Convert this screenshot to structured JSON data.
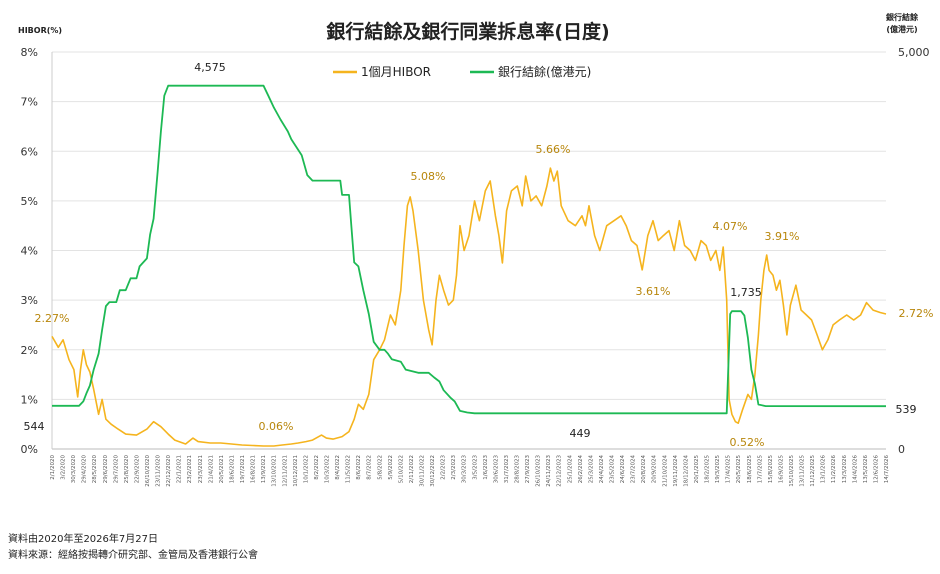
{
  "chart_data": {
    "type": "line",
    "title": "銀行結餘及銀行同業拆息率(日度)",
    "y_left_label": "HIBOR(%)",
    "y_right_label_line1": "銀行結餘",
    "y_right_label_line2": "(億港元)",
    "y_left_ticks": [
      "0%",
      "1%",
      "2%",
      "3%",
      "4%",
      "5%",
      "6%",
      "7%",
      "8%"
    ],
    "y_left_range": [
      0,
      8
    ],
    "y_right_ticks": [
      "0",
      "5,000"
    ],
    "y_right_range": [
      0,
      5000
    ],
    "x_range": [
      "2020-01-02",
      "2026-07-27"
    ],
    "x_tick_labels": [
      "2/1/2020",
      "3/2/2020",
      "30/3/2020",
      "29/4/2020",
      "28/5/2020",
      "29/6/2020",
      "29/7/2020",
      "25/8/2020",
      "22/9/2020",
      "26/10/2020",
      "23/11/2020",
      "22/12/2020",
      "22/1/2021",
      "23/2/2021",
      "23/3/2021",
      "21/4/2021",
      "20/5/2021",
      "18/6/2021",
      "19/7/2021",
      "16/8/2021",
      "13/9/2021",
      "13/10/2021",
      "12/11/2021",
      "10/12/2021",
      "10/1/2022",
      "8/2/2022",
      "10/3/2022",
      "8/4/2022",
      "11/5/2022",
      "8/6/2022",
      "8/7/2022",
      "5/8/2022",
      "5/9/2022",
      "5/10/2022",
      "2/11/2022",
      "30/11/2022",
      "30/12/2022",
      "2/2/2023",
      "2/3/2023",
      "30/3/2023",
      "3/5/2023",
      "1/6/2023",
      "30/6/2023",
      "31/7/2023",
      "28/8/2023",
      "27/9/2023",
      "26/10/2023",
      "24/11/2023",
      "22/12/2023",
      "25/1/2024",
      "26/2/2024",
      "25/3/2024",
      "24/4/2024",
      "23/5/2024",
      "24/6/2024",
      "23/7/2024",
      "20/8/2024",
      "20/9/2024",
      "21/10/2024",
      "19/11/2024",
      "18/12/2024",
      "20/1/2025",
      "18/2/2025",
      "19/3/2025",
      "17/4/2025",
      "20/5/2025",
      "18/6/2025",
      "17/7/2025",
      "15/8/2025",
      "16/9/2025",
      "15/10/2025",
      "13/11/2025",
      "11/12/2025",
      "13/1/2026",
      "11/2/2026",
      "13/3/2026",
      "14/4/2026",
      "13/5/2026",
      "12/6/2026",
      "14/7/2026"
    ],
    "series": [
      {
        "name": "1個月HIBOR",
        "axis": "left",
        "color": "#F5B41E",
        "points": [
          [
            "2020-01-02",
            2.27
          ],
          [
            "2020-01-20",
            2.05
          ],
          [
            "2020-02-03",
            2.2
          ],
          [
            "2020-02-20",
            1.8
          ],
          [
            "2020-03-05",
            1.6
          ],
          [
            "2020-03-16",
            1.05
          ],
          [
            "2020-03-24",
            1.6
          ],
          [
            "2020-04-01",
            2.0
          ],
          [
            "2020-04-10",
            1.7
          ],
          [
            "2020-04-20",
            1.55
          ],
          [
            "2020-05-01",
            1.2
          ],
          [
            "2020-05-15",
            0.7
          ],
          [
            "2020-05-25",
            1.0
          ],
          [
            "2020-06-05",
            0.6
          ],
          [
            "2020-06-20",
            0.5
          ],
          [
            "2020-07-10",
            0.4
          ],
          [
            "2020-08-01",
            0.3
          ],
          [
            "2020-09-01",
            0.28
          ],
          [
            "2020-10-01",
            0.4
          ],
          [
            "2020-10-20",
            0.55
          ],
          [
            "2020-11-10",
            0.45
          ],
          [
            "2020-12-01",
            0.3
          ],
          [
            "2020-12-20",
            0.18
          ],
          [
            "2021-01-20",
            0.1
          ],
          [
            "2021-02-10",
            0.22
          ],
          [
            "2021-02-25",
            0.15
          ],
          [
            "2021-04-01",
            0.12
          ],
          [
            "2021-05-01",
            0.12
          ],
          [
            "2021-06-01",
            0.1
          ],
          [
            "2021-07-01",
            0.08
          ],
          [
            "2021-08-01",
            0.07
          ],
          [
            "2021-09-01",
            0.06
          ],
          [
            "2021-10-01",
            0.06
          ],
          [
            "2021-10-25",
            0.08
          ],
          [
            "2021-11-20",
            0.1
          ],
          [
            "2021-12-10",
            0.12
          ],
          [
            "2022-01-01",
            0.15
          ],
          [
            "2022-01-20",
            0.18
          ],
          [
            "2022-02-15",
            0.28
          ],
          [
            "2022-03-01",
            0.22
          ],
          [
            "2022-03-20",
            0.2
          ],
          [
            "2022-04-15",
            0.25
          ],
          [
            "2022-05-05",
            0.35
          ],
          [
            "2022-05-20",
            0.6
          ],
          [
            "2022-06-01",
            0.9
          ],
          [
            "2022-06-15",
            0.8
          ],
          [
            "2022-07-01",
            1.1
          ],
          [
            "2022-07-15",
            1.8
          ],
          [
            "2022-08-01",
            2.0
          ],
          [
            "2022-08-15",
            2.2
          ],
          [
            "2022-09-01",
            2.7
          ],
          [
            "2022-09-15",
            2.5
          ],
          [
            "2022-10-01",
            3.2
          ],
          [
            "2022-10-10",
            4.1
          ],
          [
            "2022-10-20",
            4.9
          ],
          [
            "2022-10-28",
            5.08
          ],
          [
            "2022-11-05",
            4.8
          ],
          [
            "2022-11-20",
            4.0
          ],
          [
            "2022-12-05",
            3.0
          ],
          [
            "2022-12-20",
            2.4
          ],
          [
            "2022-12-30",
            2.1
          ],
          [
            "2023-01-10",
            3.0
          ],
          [
            "2023-01-20",
            3.5
          ],
          [
            "2023-02-01",
            3.2
          ],
          [
            "2023-02-15",
            2.9
          ],
          [
            "2023-03-01",
            3.0
          ],
          [
            "2023-03-10",
            3.5
          ],
          [
            "2023-03-20",
            4.5
          ],
          [
            "2023-04-01",
            4.0
          ],
          [
            "2023-04-15",
            4.3
          ],
          [
            "2023-05-01",
            5.0
          ],
          [
            "2023-05-15",
            4.6
          ],
          [
            "2023-06-01",
            5.2
          ],
          [
            "2023-06-15",
            5.4
          ],
          [
            "2023-06-30",
            4.7
          ],
          [
            "2023-07-10",
            4.3
          ],
          [
            "2023-07-20",
            3.75
          ],
          [
            "2023-08-01",
            4.8
          ],
          [
            "2023-08-15",
            5.2
          ],
          [
            "2023-09-01",
            5.3
          ],
          [
            "2023-09-15",
            4.9
          ],
          [
            "2023-09-25",
            5.5
          ],
          [
            "2023-10-10",
            5.0
          ],
          [
            "2023-10-25",
            5.1
          ],
          [
            "2023-11-10",
            4.9
          ],
          [
            "2023-11-25",
            5.3
          ],
          [
            "2023-12-05",
            5.66
          ],
          [
            "2023-12-15",
            5.4
          ],
          [
            "2023-12-25",
            5.6
          ],
          [
            "2024-01-05",
            4.9
          ],
          [
            "2024-01-25",
            4.6
          ],
          [
            "2024-02-15",
            4.5
          ],
          [
            "2024-03-05",
            4.7
          ],
          [
            "2024-03-15",
            4.5
          ],
          [
            "2024-03-25",
            4.9
          ],
          [
            "2024-04-10",
            4.3
          ],
          [
            "2024-04-25",
            4.0
          ],
          [
            "2024-05-15",
            4.5
          ],
          [
            "2024-06-05",
            4.6
          ],
          [
            "2024-06-25",
            4.7
          ],
          [
            "2024-07-10",
            4.5
          ],
          [
            "2024-07-25",
            4.2
          ],
          [
            "2024-08-10",
            4.1
          ],
          [
            "2024-08-25",
            3.61
          ],
          [
            "2024-09-10",
            4.3
          ],
          [
            "2024-09-25",
            4.6
          ],
          [
            "2024-10-10",
            4.2
          ],
          [
            "2024-10-25",
            4.3
          ],
          [
            "2024-11-10",
            4.4
          ],
          [
            "2024-11-25",
            4.0
          ],
          [
            "2024-12-10",
            4.6
          ],
          [
            "2024-12-25",
            4.1
          ],
          [
            "2025-01-10",
            4.0
          ],
          [
            "2025-01-25",
            3.8
          ],
          [
            "2025-02-10",
            4.2
          ],
          [
            "2025-02-25",
            4.1
          ],
          [
            "2025-03-10",
            3.8
          ],
          [
            "2025-03-25",
            4.0
          ],
          [
            "2025-04-05",
            3.6
          ],
          [
            "2025-04-15",
            4.07
          ],
          [
            "2025-04-25",
            3.0
          ],
          [
            "2025-05-02",
            1.0
          ],
          [
            "2025-05-10",
            0.7
          ],
          [
            "2025-05-20",
            0.55
          ],
          [
            "2025-05-28",
            0.52
          ],
          [
            "2025-06-10",
            0.8
          ],
          [
            "2025-06-25",
            1.1
          ],
          [
            "2025-07-05",
            1.0
          ],
          [
            "2025-07-15",
            1.5
          ],
          [
            "2025-07-25",
            2.3
          ],
          [
            "2025-08-01",
            3.0
          ],
          [
            "2025-08-10",
            3.6
          ],
          [
            "2025-08-18",
            3.91
          ],
          [
            "2025-08-25",
            3.6
          ],
          [
            "2025-09-05",
            3.5
          ],
          [
            "2025-09-15",
            3.2
          ],
          [
            "2025-09-25",
            3.4
          ],
          [
            "2025-10-05",
            2.9
          ],
          [
            "2025-10-15",
            2.3
          ],
          [
            "2025-10-25",
            2.9
          ],
          [
            "2025-11-10",
            3.3
          ],
          [
            "2025-11-25",
            2.8
          ],
          [
            "2025-12-10",
            2.7
          ],
          [
            "2025-12-25",
            2.6
          ],
          [
            "2026-01-10",
            2.3
          ],
          [
            "2026-01-25",
            2.0
          ],
          [
            "2026-02-10",
            2.2
          ],
          [
            "2026-02-25",
            2.5
          ],
          [
            "2026-03-15",
            2.6
          ],
          [
            "2026-04-05",
            2.7
          ],
          [
            "2026-04-25",
            2.6
          ],
          [
            "2026-05-15",
            2.7
          ],
          [
            "2026-06-01",
            2.95
          ],
          [
            "2026-06-20",
            2.8
          ],
          [
            "2026-07-10",
            2.75
          ],
          [
            "2026-07-27",
            2.72
          ]
        ]
      },
      {
        "name": "銀行結餘(億港元)",
        "axis": "right",
        "color": "#1DB954",
        "points": [
          [
            "2020-01-02",
            544
          ],
          [
            "2020-03-20",
            544
          ],
          [
            "2020-04-01",
            600
          ],
          [
            "2020-04-10",
            700
          ],
          [
            "2020-04-20",
            800
          ],
          [
            "2020-05-01",
            1000
          ],
          [
            "2020-05-15",
            1200
          ],
          [
            "2020-05-25",
            1500
          ],
          [
            "2020-06-05",
            1800
          ],
          [
            "2020-06-15",
            1850
          ],
          [
            "2020-07-05",
            1850
          ],
          [
            "2020-07-15",
            2000
          ],
          [
            "2020-08-01",
            2000
          ],
          [
            "2020-08-15",
            2150
          ],
          [
            "2020-09-01",
            2150
          ],
          [
            "2020-09-10",
            2300
          ],
          [
            "2020-10-01",
            2400
          ],
          [
            "2020-10-10",
            2700
          ],
          [
            "2020-10-20",
            2900
          ],
          [
            "2020-11-01",
            3500
          ],
          [
            "2020-11-10",
            4000
          ],
          [
            "2020-11-20",
            4450
          ],
          [
            "2020-12-01",
            4575
          ],
          [
            "2021-09-01",
            4575
          ],
          [
            "2021-09-15",
            4450
          ],
          [
            "2021-10-01",
            4300
          ],
          [
            "2021-10-20",
            4150
          ],
          [
            "2021-11-10",
            4000
          ],
          [
            "2021-11-20",
            3900
          ],
          [
            "2021-12-05",
            3800
          ],
          [
            "2021-12-20",
            3700
          ],
          [
            "2022-01-05",
            3450
          ],
          [
            "2022-01-20",
            3380
          ],
          [
            "2022-04-10",
            3380
          ],
          [
            "2022-04-15",
            3200
          ],
          [
            "2022-05-05",
            3200
          ],
          [
            "2022-05-12",
            2800
          ],
          [
            "2022-05-20",
            2350
          ],
          [
            "2022-06-01",
            2300
          ],
          [
            "2022-06-15",
            2000
          ],
          [
            "2022-07-01",
            1700
          ],
          [
            "2022-07-15",
            1350
          ],
          [
            "2022-08-01",
            1250
          ],
          [
            "2022-08-15",
            1250
          ],
          [
            "2022-08-25",
            1200
          ],
          [
            "2022-09-05",
            1130
          ],
          [
            "2022-10-01",
            1100
          ],
          [
            "2022-10-15",
            1000
          ],
          [
            "2022-11-20",
            960
          ],
          [
            "2022-12-20",
            960
          ],
          [
            "2023-01-05",
            900
          ],
          [
            "2023-01-20",
            850
          ],
          [
            "2023-02-01",
            740
          ],
          [
            "2023-02-20",
            650
          ],
          [
            "2023-03-05",
            600
          ],
          [
            "2023-03-20",
            480
          ],
          [
            "2023-04-10",
            460
          ],
          [
            "2023-05-01",
            449
          ],
          [
            "2025-04-25",
            449
          ],
          [
            "2025-05-05",
            1700
          ],
          [
            "2025-05-10",
            1735
          ],
          [
            "2025-06-05",
            1735
          ],
          [
            "2025-06-15",
            1680
          ],
          [
            "2025-06-25",
            1400
          ],
          [
            "2025-07-05",
            1000
          ],
          [
            "2025-07-15",
            820
          ],
          [
            "2025-07-25",
            560
          ],
          [
            "2025-08-15",
            540
          ],
          [
            "2026-07-27",
            539
          ]
        ]
      }
    ],
    "annotations": {
      "hibor": [
        "2.27%",
        "0.06%",
        "5.08%",
        "5.66%",
        "3.61%",
        "4.07%",
        "0.52%",
        "3.91%",
        "2.72%"
      ],
      "balance": [
        "544",
        "4,575",
        "449",
        "1,735",
        "539"
      ]
    },
    "legend_position": "top-center",
    "grid": "horizontal"
  },
  "footnotes": {
    "line1": "資料由2020年至2026年7月27日",
    "line2": "資料來源：經絡按揭轉介研究部、金管局及香港銀行公會"
  }
}
